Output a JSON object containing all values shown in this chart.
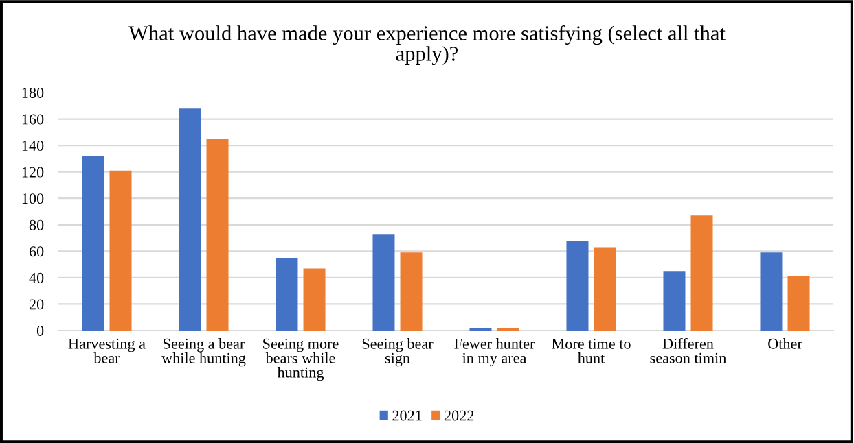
{
  "chart_data": {
    "type": "bar",
    "title": "What would have made your experience more satisfying (select all that\napply)?",
    "categories": [
      "Harvesting a\nbear",
      "Seeing a bear\nwhile hunting",
      "Seeing more\nbears while\nhunting",
      "Seeing bear\nsign",
      "Fewer hunter\nin my area",
      "More time to\nhunt",
      "Differen\nseason timin",
      "Other"
    ],
    "series": [
      {
        "name": "2021",
        "color": "#4472c4",
        "values": [
          132,
          168,
          55,
          73,
          2,
          68,
          45,
          59
        ]
      },
      {
        "name": "2022",
        "color": "#ed7d31",
        "values": [
          121,
          145,
          47,
          59,
          2,
          63,
          87,
          41
        ]
      }
    ],
    "ylim": [
      0,
      180
    ],
    "yticks": [
      0,
      20,
      40,
      60,
      80,
      100,
      120,
      140,
      160,
      180
    ],
    "grid": "y",
    "legend": "bottom"
  }
}
